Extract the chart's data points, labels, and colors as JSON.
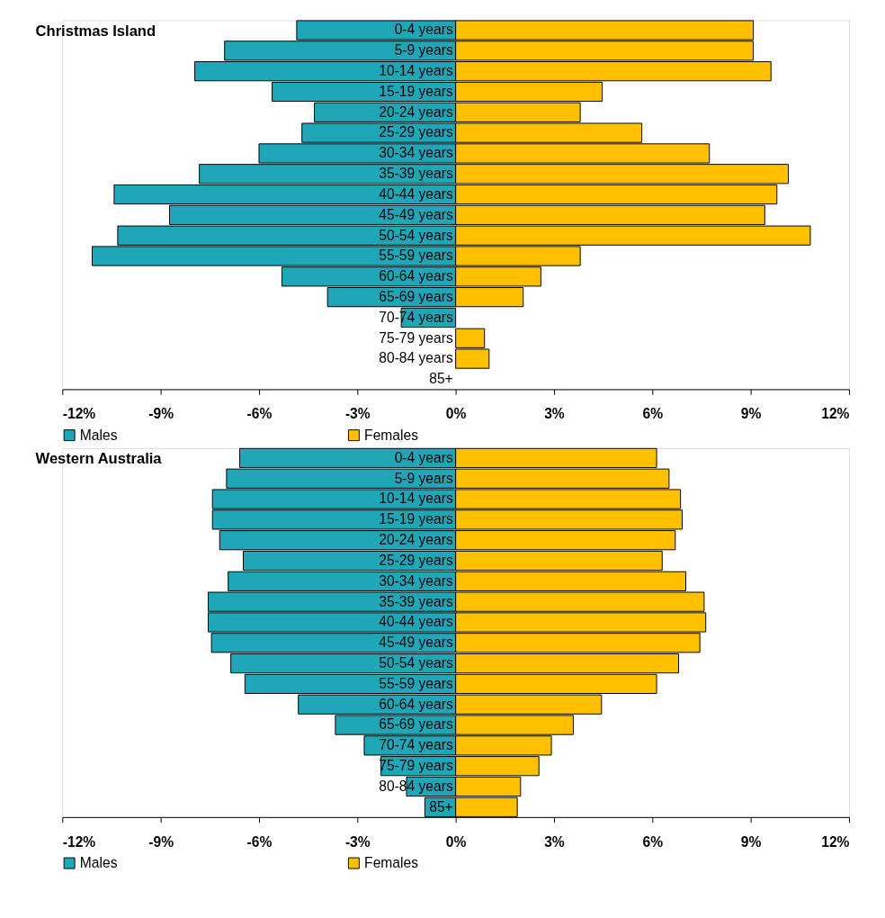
{
  "chart_data": [
    {
      "type": "bar",
      "title": "Christmas Island",
      "orientation": "horizontal",
      "stacked": true,
      "legend": "bottom",
      "categories": [
        "0-4 years",
        "5-9 years",
        "10-14 years",
        "15-19 years",
        "20-24 years",
        "25-29 years",
        "30-34 years",
        "35-39 years",
        "40-44 years",
        "45-49 years",
        "50-54 years",
        "55-59 years",
        "60-64 years",
        "65-69 years",
        "70-74 years",
        "75-79 years",
        "80-84 years",
        "85+"
      ],
      "series": [
        {
          "name": "Males",
          "color": "#1fa7b8",
          "values": [
            -4.85,
            -7.05,
            -7.96,
            -5.6,
            -4.31,
            -4.69,
            -6.0,
            -7.82,
            -10.42,
            -8.73,
            -10.31,
            -11.09,
            -5.3,
            -3.91,
            -1.66,
            null,
            null,
            null
          ]
        },
        {
          "name": "Females",
          "color": "#ffc000",
          "values": [
            9.08,
            9.08,
            9.62,
            4.47,
            3.8,
            5.68,
            7.74,
            10.15,
            9.8,
            9.43,
            10.82,
            3.8,
            2.6,
            2.06,
            null,
            0.88,
            1.02,
            null
          ]
        }
      ],
      "xlim": [
        -12,
        12
      ],
      "xticks": [
        {
          "value": -12,
          "label": "-12%"
        },
        {
          "value": -9,
          "label": "-9%"
        },
        {
          "value": -6,
          "label": "-6%"
        },
        {
          "value": -3,
          "label": "-3%"
        },
        {
          "value": 0,
          "label": "0%"
        },
        {
          "value": 3,
          "label": "3%"
        },
        {
          "value": 6,
          "label": "6%"
        },
        {
          "value": 9,
          "label": "9%"
        },
        {
          "value": 12,
          "label": "12%"
        }
      ]
    },
    {
      "type": "bar",
      "title": "Western Australia",
      "orientation": "horizontal",
      "stacked": true,
      "legend": "bottom",
      "categories": [
        "0-4 years",
        "5-9 years",
        "10-14 years",
        "15-19 years",
        "20-24 years",
        "25-29 years",
        "30-34 years",
        "35-39 years",
        "40-44 years",
        "45-49 years",
        "50-54 years",
        "55-59 years",
        "60-64 years",
        "65-69 years",
        "70-74 years",
        "75-79 years",
        "80-84 years",
        "85+"
      ],
      "series": [
        {
          "name": "Males",
          "color": "#1fa7b8",
          "values": [
            -6.59,
            -6.99,
            -7.42,
            -7.42,
            -7.2,
            -6.48,
            -6.94,
            -7.55,
            -7.55,
            -7.45,
            -6.86,
            -6.43,
            -4.8,
            -3.67,
            -2.79,
            -2.28,
            -1.5,
            -0.94
          ]
        },
        {
          "name": "Females",
          "color": "#ffc000",
          "values": [
            6.13,
            6.51,
            6.86,
            6.91,
            6.7,
            6.3,
            7.02,
            7.58,
            7.63,
            7.45,
            6.8,
            6.13,
            4.45,
            3.59,
            2.92,
            2.54,
            1.98,
            1.88
          ]
        }
      ],
      "xlim": [
        -12,
        12
      ],
      "xticks": [
        {
          "value": -12,
          "label": "-12%"
        },
        {
          "value": -9,
          "label": "-9%"
        },
        {
          "value": -6,
          "label": "-6%"
        },
        {
          "value": -3,
          "label": "-3%"
        },
        {
          "value": 0,
          "label": "0%"
        },
        {
          "value": 3,
          "label": "3%"
        },
        {
          "value": 6,
          "label": "6%"
        },
        {
          "value": 9,
          "label": "9%"
        },
        {
          "value": 12,
          "label": "12%"
        }
      ]
    }
  ]
}
